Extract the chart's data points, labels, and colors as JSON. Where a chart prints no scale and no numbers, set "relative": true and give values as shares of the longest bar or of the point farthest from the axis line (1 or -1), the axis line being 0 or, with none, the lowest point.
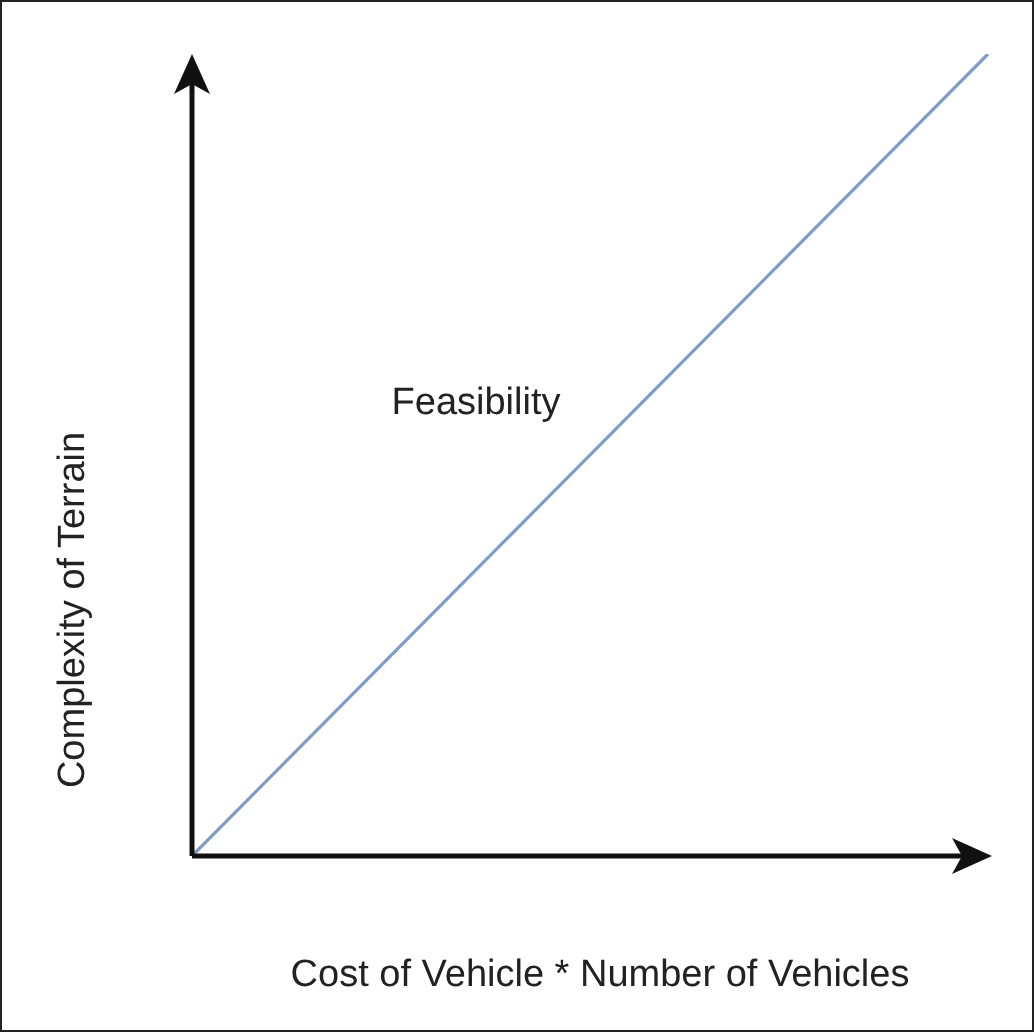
{
  "chart_data": {
    "type": "line",
    "relative": true,
    "xlabel": "Cost of Vehicle * Number of Vehicles",
    "ylabel": "Complexity of Terrain",
    "categories": [
      null,
      null
    ],
    "series": [
      {
        "color": "#7f9cc6",
        "values": [
          0,
          1
        ]
      }
    ],
    "annotations": [
      "Feasibility"
    ],
    "legend": false,
    "marker": "none",
    "line_style": "solid"
  }
}
